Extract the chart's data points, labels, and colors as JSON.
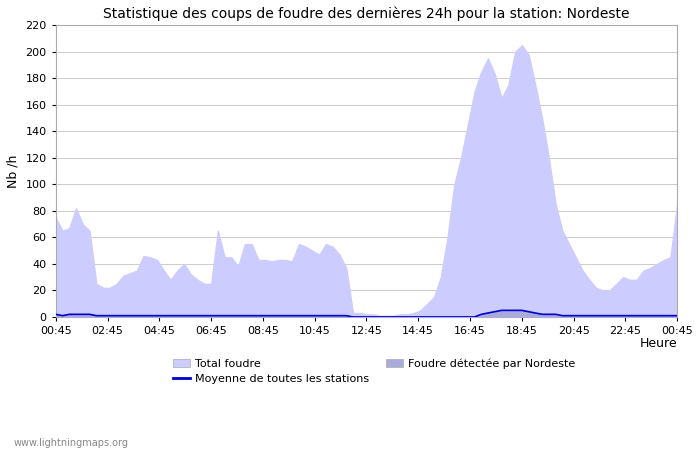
{
  "title": "Statistique des coups de foudre des dernières 24h pour la station: Nordeste",
  "xlabel": "Heure",
  "ylabel": "Nb /h",
  "ylim": [
    0,
    220
  ],
  "yticks": [
    0,
    20,
    40,
    60,
    80,
    100,
    120,
    140,
    160,
    180,
    200,
    220
  ],
  "x_labels": [
    "00:45",
    "02:45",
    "04:45",
    "06:45",
    "08:45",
    "10:45",
    "12:45",
    "14:45",
    "16:45",
    "18:45",
    "20:45",
    "22:45",
    "00:45"
  ],
  "total_foudre_color": "#ccccff",
  "nordeste_color": "#aaaadd",
  "moyenne_color": "#0000cc",
  "background_color": "#ffffff",
  "grid_color": "#cccccc",
  "watermark": "www.lightningmaps.org",
  "total_foudre": [
    75,
    65,
    67,
    82,
    70,
    65,
    25,
    22,
    22,
    25,
    31,
    33,
    35,
    46,
    45,
    43,
    35,
    28,
    35,
    40,
    32,
    28,
    25,
    25,
    65,
    45,
    45,
    38,
    55,
    55,
    43,
    43,
    42,
    43,
    43,
    42,
    55,
    53,
    50,
    47,
    55,
    53,
    47,
    37,
    3,
    3,
    2,
    2,
    1,
    1,
    1,
    2,
    2,
    3,
    5,
    10,
    15,
    30,
    60,
    100,
    120,
    145,
    170,
    185,
    195,
    183,
    165,
    175,
    200,
    205,
    198,
    175,
    150,
    120,
    85,
    65,
    55,
    45,
    35,
    28,
    22,
    20,
    20,
    25,
    30,
    28,
    28,
    35,
    37,
    40,
    43,
    45,
    85
  ],
  "nordeste": [
    2,
    1,
    2,
    2,
    2,
    2,
    1,
    1,
    1,
    1,
    1,
    1,
    1,
    1,
    1,
    1,
    1,
    1,
    1,
    1,
    1,
    1,
    1,
    1,
    1,
    1,
    1,
    1,
    1,
    1,
    1,
    1,
    1,
    1,
    1,
    1,
    1,
    1,
    1,
    1,
    1,
    1,
    1,
    1,
    0,
    0,
    0,
    0,
    0,
    0,
    0,
    0,
    0,
    0,
    0,
    0,
    0,
    0,
    0,
    0,
    0,
    0,
    0,
    2,
    3,
    4,
    5,
    5,
    5,
    5,
    4,
    3,
    2,
    2,
    2,
    1,
    1,
    1,
    1,
    1,
    1,
    1,
    1,
    1,
    1,
    1,
    1,
    1,
    1,
    1,
    1,
    1,
    1
  ],
  "moyenne": [
    2,
    1,
    2,
    2,
    2,
    2,
    1,
    1,
    1,
    1,
    1,
    1,
    1,
    1,
    1,
    1,
    1,
    1,
    1,
    1,
    1,
    1,
    1,
    1,
    1,
    1,
    1,
    1,
    1,
    1,
    1,
    1,
    1,
    1,
    1,
    1,
    1,
    1,
    1,
    1,
    1,
    1,
    1,
    1,
    0,
    0,
    0,
    0,
    0,
    0,
    0,
    0,
    0,
    0,
    0,
    0,
    0,
    0,
    0,
    0,
    0,
    0,
    0,
    2,
    3,
    4,
    5,
    5,
    5,
    5,
    4,
    3,
    2,
    2,
    2,
    1,
    1,
    1,
    1,
    1,
    1,
    1,
    1,
    1,
    1,
    1,
    1,
    1,
    1,
    1,
    1,
    1,
    1
  ]
}
